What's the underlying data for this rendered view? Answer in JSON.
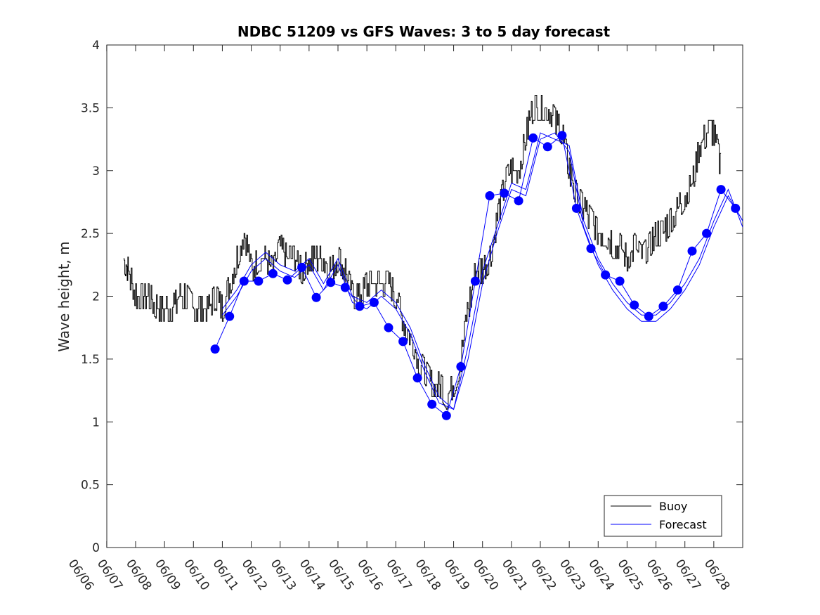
{
  "chart_data": {
    "type": "line",
    "title": "NDBC 51209 vs GFS Waves: 3 to 5 day forecast",
    "xlabel": "",
    "ylabel": "Wave height, m",
    "x_tick_labels": [
      "06/06",
      "06/07",
      "06/08",
      "06/09",
      "06/10",
      "06/11",
      "06/12",
      "06/13",
      "06/14",
      "06/15",
      "06/16",
      "06/17",
      "06/18",
      "06/19",
      "06/20",
      "06/21",
      "06/22",
      "06/23",
      "06/24",
      "06/25",
      "06/26",
      "06/27",
      "06/28"
    ],
    "xlim": [
      "06/06",
      "06/28"
    ],
    "ylim": [
      0,
      4
    ],
    "y_ticks": [
      "0",
      "0.5",
      "1",
      "1.5",
      "2",
      "2.5",
      "3",
      "3.5",
      "4"
    ],
    "grid": false,
    "legend": {
      "position": "bottom-right",
      "entries": [
        "Buoy",
        "Forecast"
      ]
    },
    "colors": {
      "buoy": "#000000",
      "forecast": "#0000ff"
    },
    "series": [
      {
        "name": "Buoy",
        "x": [
          "06/06 14:00",
          "06/06 18:00",
          "06/07 00:00",
          "06/07 06:00",
          "06/07 12:00",
          "06/07 18:00",
          "06/08 00:00",
          "06/08 06:00",
          "06/08 12:00",
          "06/08 18:00",
          "06/09 00:00",
          "06/09 06:00",
          "06/09 12:00",
          "06/09 18:00",
          "06/10 00:00",
          "06/10 06:00",
          "06/10 12:00",
          "06/10 18:00",
          "06/11 00:00",
          "06/11 06:00",
          "06/11 12:00",
          "06/11 18:00",
          "06/12 00:00",
          "06/12 06:00",
          "06/12 12:00",
          "06/12 18:00",
          "06/13 00:00",
          "06/13 06:00",
          "06/13 12:00",
          "06/13 18:00",
          "06/14 00:00",
          "06/14 06:00",
          "06/14 12:00",
          "06/14 18:00",
          "06/15 00:00",
          "06/15 06:00",
          "06/15 12:00",
          "06/15 18:00",
          "06/16 00:00",
          "06/16 06:00",
          "06/16 12:00",
          "06/16 18:00",
          "06/17 00:00",
          "06/17 06:00",
          "06/17 12:00",
          "06/17 18:00",
          "06/18 00:00",
          "06/18 06:00",
          "06/18 12:00",
          "06/18 18:00",
          "06/19 00:00",
          "06/19 06:00",
          "06/19 12:00",
          "06/19 18:00",
          "06/20 00:00",
          "06/20 06:00",
          "06/20 12:00",
          "06/20 18:00",
          "06/21 00:00",
          "06/21 06:00",
          "06/21 12:00",
          "06/21 18:00",
          "06/22 00:00",
          "06/22 06:00",
          "06/22 12:00",
          "06/22 18:00",
          "06/23 00:00",
          "06/23 06:00",
          "06/23 12:00",
          "06/23 18:00",
          "06/24 00:00",
          "06/24 06:00",
          "06/24 12:00",
          "06/24 18:00",
          "06/25 00:00",
          "06/25 06:00",
          "06/25 12:00",
          "06/25 18:00",
          "06/26 00:00",
          "06/26 06:00",
          "06/26 12:00",
          "06/26 18:00",
          "06/27 00:00",
          "06/27 06:00"
        ],
        "y": [
          2.3,
          2.2,
          2.0,
          2.0,
          2.0,
          1.9,
          1.9,
          1.9,
          2.0,
          2.0,
          1.9,
          1.9,
          1.9,
          2.0,
          1.9,
          2.1,
          2.3,
          2.5,
          2.2,
          2.3,
          2.3,
          2.2,
          2.4,
          2.3,
          2.3,
          2.2,
          2.3,
          2.3,
          2.3,
          2.2,
          2.3,
          2.2,
          2.0,
          2.0,
          2.1,
          2.1,
          2.1,
          2.1,
          2.0,
          1.8,
          1.7,
          1.5,
          1.4,
          1.3,
          1.3,
          1.2,
          1.3,
          1.5,
          1.9,
          2.2,
          2.2,
          2.3,
          2.6,
          2.9,
          3.0,
          3.0,
          3.3,
          3.5,
          3.5,
          3.5,
          3.4,
          3.3,
          3.0,
          2.8,
          2.7,
          2.6,
          2.5,
          2.5,
          2.4,
          2.4,
          2.3,
          2.4,
          2.3,
          2.4,
          2.5,
          2.5,
          2.6,
          2.7,
          2.8,
          2.9,
          3.2,
          3.3,
          3.3,
          3.0
        ]
      },
      {
        "name": "Forecast",
        "x": [
          "06/09 18:00",
          "06/10 06:00",
          "06/10 18:00",
          "06/11 06:00",
          "06/11 18:00",
          "06/12 06:00",
          "06/12 18:00",
          "06/13 06:00",
          "06/13 18:00",
          "06/14 06:00",
          "06/14 18:00",
          "06/15 06:00",
          "06/15 18:00",
          "06/16 06:00",
          "06/16 18:00",
          "06/17 06:00",
          "06/17 18:00",
          "06/18 06:00",
          "06/18 18:00",
          "06/19 06:00",
          "06/19 18:00",
          "06/20 06:00",
          "06/20 18:00",
          "06/21 06:00",
          "06/21 18:00",
          "06/22 06:00",
          "06/22 18:00",
          "06/23 06:00",
          "06/23 18:00",
          "06/24 06:00",
          "06/24 18:00",
          "06/25 06:00",
          "06/25 18:00",
          "06/26 06:00",
          "06/26 18:00",
          "06/27 06:00",
          "06/27 18:00",
          "06/28 00:00"
        ],
        "y": [
          1.58,
          1.84,
          2.12,
          2.12,
          2.18,
          2.13,
          2.23,
          1.99,
          2.11,
          2.07,
          1.92,
          1.95,
          1.75,
          1.64,
          1.35,
          1.14,
          1.05,
          1.44,
          2.12,
          2.8,
          2.82,
          2.76,
          3.26,
          3.19,
          3.28,
          2.7,
          2.38,
          2.17,
          2.12,
          1.93,
          1.84,
          1.92,
          2.05,
          2.36,
          2.5,
          2.85,
          2.7,
          2.6
        ]
      },
      {
        "name": "",
        "x": [
          "06/10 00:00",
          "06/10 12:00",
          "06/11 00:00",
          "06/11 12:00",
          "06/12 00:00",
          "06/12 12:00",
          "06/13 00:00",
          "06/13 12:00",
          "06/14 00:00",
          "06/14 12:00",
          "06/15 00:00",
          "06/15 12:00",
          "06/16 00:00",
          "06/16 12:00",
          "06/17 00:00",
          "06/17 12:00",
          "06/18 00:00",
          "06/18 12:00",
          "06/19 00:00",
          "06/19 12:00",
          "06/20 00:00",
          "06/20 12:00",
          "06/21 00:00",
          "06/21 12:00",
          "06/22 00:00",
          "06/22 12:00",
          "06/23 00:00",
          "06/23 12:00",
          "06/24 00:00",
          "06/24 12:00",
          "06/25 00:00",
          "06/25 12:00",
          "06/26 00:00",
          "06/26 12:00",
          "06/27 00:00",
          "06/27 12:00",
          "06/28 00:00"
        ],
        "y": [
          1.9,
          2.05,
          2.25,
          2.35,
          2.25,
          2.2,
          2.3,
          2.1,
          2.3,
          2.0,
          1.95,
          2.05,
          1.95,
          1.75,
          1.45,
          1.2,
          1.1,
          1.6,
          2.2,
          2.55,
          2.9,
          2.85,
          3.3,
          3.25,
          3.2,
          2.6,
          2.3,
          2.1,
          1.95,
          1.85,
          1.85,
          1.95,
          2.1,
          2.3,
          2.6,
          2.85,
          2.55
        ]
      },
      {
        "name": "",
        "x": [
          "06/10 00:00",
          "06/10 12:00",
          "06/11 00:00",
          "06/11 12:00",
          "06/12 00:00",
          "06/12 12:00",
          "06/13 00:00",
          "06/13 12:00",
          "06/14 00:00",
          "06/14 12:00",
          "06/15 00:00",
          "06/15 12:00",
          "06/16 00:00",
          "06/16 12:00",
          "06/17 00:00",
          "06/17 12:00",
          "06/18 00:00",
          "06/18 12:00",
          "06/19 00:00",
          "06/19 12:00",
          "06/20 00:00",
          "06/20 12:00",
          "06/21 00:00",
          "06/21 12:00",
          "06/22 00:00",
          "06/22 12:00",
          "06/23 00:00",
          "06/23 12:00",
          "06/24 00:00",
          "06/24 12:00",
          "06/25 00:00",
          "06/25 12:00",
          "06/26 00:00",
          "06/26 12:00",
          "06/27 00:00",
          "06/27 12:00",
          "06/28 00:00"
        ],
        "y": [
          1.85,
          2.0,
          2.2,
          2.3,
          2.2,
          2.15,
          2.25,
          2.05,
          2.25,
          1.95,
          1.9,
          2.0,
          1.9,
          1.7,
          1.4,
          1.15,
          1.1,
          1.5,
          2.1,
          2.5,
          2.85,
          2.8,
          3.25,
          3.3,
          3.15,
          2.55,
          2.25,
          2.05,
          1.9,
          1.8,
          1.8,
          1.9,
          2.05,
          2.25,
          2.55,
          2.8,
          2.6
        ]
      }
    ]
  }
}
